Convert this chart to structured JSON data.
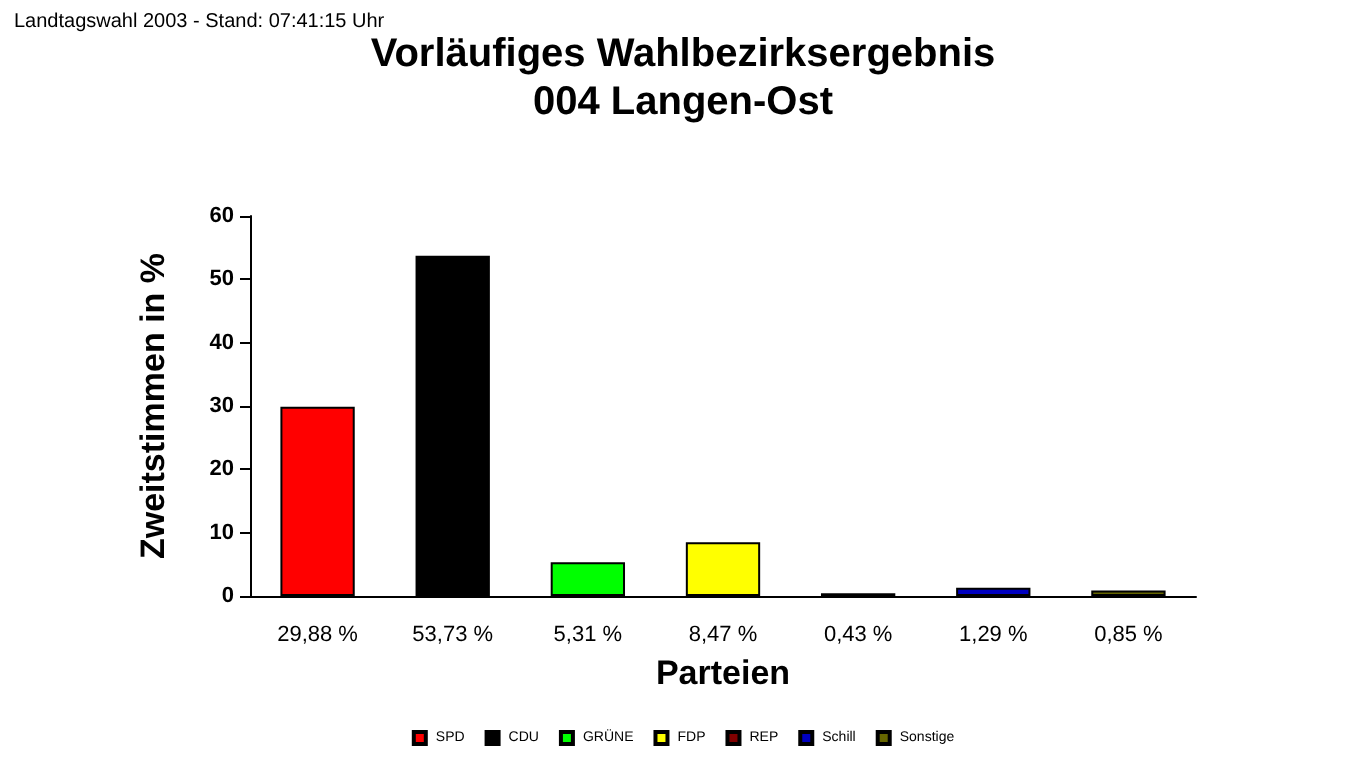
{
  "chart_data": {
    "type": "bar",
    "title": "Vorläufiges Wahlbezirksergebnis",
    "subtitle": "004 Langen-Ost",
    "xlabel": "Parteien",
    "ylabel": "Zweitstimmen in %",
    "annotations": [
      "Landtagswahl 2003 - Stand: 07:41:15 Uhr"
    ],
    "categories": [
      "29,88 %",
      "53,73 %",
      "5,31 %",
      "8,47 %",
      "0,43 %",
      "1,29 %",
      "0,85 %"
    ],
    "stacked": true,
    "series": [
      {
        "name": "SPD",
        "color": "#ff0000",
        "values": [
          29.88,
          null,
          null,
          null,
          null,
          null,
          null
        ]
      },
      {
        "name": "CDU",
        "color": "#000000",
        "values": [
          null,
          53.73,
          null,
          null,
          null,
          null,
          null
        ]
      },
      {
        "name": "GRÜNE",
        "color": "#00ff00",
        "values": [
          null,
          null,
          5.31,
          null,
          null,
          null,
          null
        ]
      },
      {
        "name": "FDP",
        "color": "#ffff00",
        "values": [
          null,
          null,
          null,
          8.47,
          null,
          null,
          null
        ]
      },
      {
        "name": "REP",
        "color": "#800000",
        "values": [
          null,
          null,
          null,
          null,
          0.43,
          null,
          null
        ]
      },
      {
        "name": "Schill",
        "color": "#0000c0",
        "values": [
          null,
          null,
          null,
          null,
          null,
          1.29,
          null
        ]
      },
      {
        "name": "Sonstige",
        "color": "#666600",
        "values": [
          null,
          null,
          null,
          null,
          null,
          null,
          0.85
        ]
      }
    ],
    "ylim": [
      0,
      60
    ],
    "yticks": [
      0,
      10,
      20,
      30,
      40,
      50,
      60
    ],
    "grid": false,
    "legend": "bottom"
  }
}
